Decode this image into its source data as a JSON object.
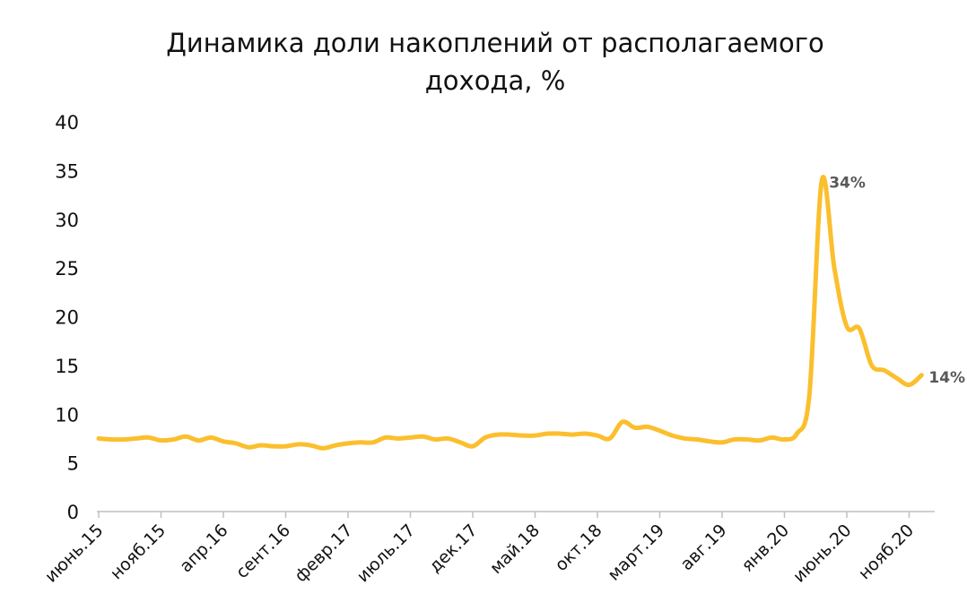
{
  "chart_data": {
    "type": "line",
    "title": [
      "Динамика доли накоплений от располагаемого",
      "дохода, %"
    ],
    "categories": [
      "июнь.15",
      null,
      null,
      null,
      null,
      "нояб.15",
      null,
      null,
      null,
      null,
      "апр.16",
      null,
      null,
      null,
      null,
      "сент.16",
      null,
      null,
      null,
      null,
      "февр.17",
      null,
      null,
      null,
      null,
      "июль.17",
      null,
      null,
      null,
      null,
      "дек.17",
      null,
      null,
      null,
      null,
      "май.18",
      null,
      null,
      null,
      null,
      "окт.18",
      null,
      null,
      null,
      null,
      "март.19",
      null,
      null,
      null,
      null,
      "авг.19",
      null,
      null,
      null,
      null,
      "янв.20",
      null,
      null,
      null,
      null,
      "июнь.20",
      null,
      null,
      null,
      null,
      "нояб.20",
      null
    ],
    "series": [
      {
        "name": null,
        "color": "#fbbf2e",
        "values": [
          7.5,
          7.4,
          7.4,
          7.5,
          7.6,
          7.3,
          7.4,
          7.7,
          7.3,
          7.6,
          7.2,
          7.0,
          6.6,
          6.8,
          6.7,
          6.7,
          6.9,
          6.8,
          6.5,
          6.8,
          7.0,
          7.1,
          7.1,
          7.6,
          7.5,
          7.6,
          7.7,
          7.4,
          7.5,
          7.1,
          6.7,
          7.6,
          7.9,
          7.9,
          7.8,
          7.8,
          8.0,
          8.0,
          7.9,
          8.0,
          7.8,
          7.5,
          9.2,
          8.6,
          8.7,
          8.3,
          7.8,
          7.5,
          7.4,
          7.2,
          7.1,
          7.4,
          7.4,
          7.3,
          7.6,
          7.4,
          8.0,
          12,
          34,
          25,
          19,
          18.8,
          15,
          14.5,
          13.7,
          13,
          14
        ],
        "value_labels": [
          null,
          null,
          null,
          null,
          null,
          null,
          null,
          null,
          null,
          null,
          null,
          null,
          null,
          null,
          null,
          null,
          null,
          null,
          null,
          null,
          null,
          null,
          null,
          null,
          null,
          null,
          null,
          null,
          null,
          null,
          null,
          null,
          null,
          null,
          null,
          null,
          null,
          null,
          null,
          null,
          null,
          null,
          null,
          null,
          null,
          null,
          null,
          null,
          null,
          null,
          null,
          null,
          null,
          null,
          null,
          null,
          null,
          null,
          "34%",
          null,
          null,
          null,
          null,
          null,
          null,
          null,
          "14%"
        ]
      }
    ],
    "ylim": [
      0,
      40
    ],
    "yticks": [
      0,
      5,
      10,
      15,
      20,
      25,
      30,
      35,
      40
    ],
    "grid": false
  }
}
